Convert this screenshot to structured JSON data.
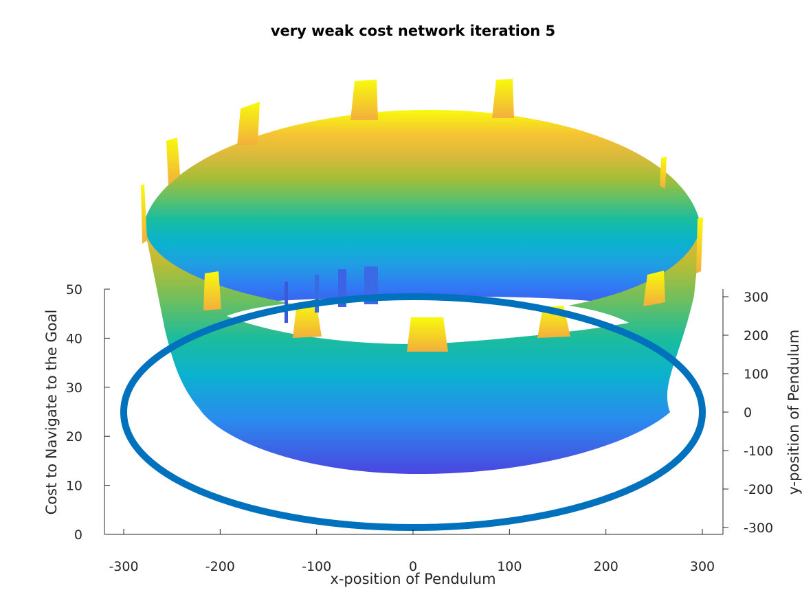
{
  "chart_data": {
    "type": "surface3d",
    "title": "very weak cost network iteration 5",
    "xlabel": "x-position of Pendulum",
    "ylabel": "y-position of Pendulum",
    "zlabel": "Cost to Navigate to the Goal",
    "xlim": [
      -320,
      320
    ],
    "ylim": [
      -320,
      320
    ],
    "zlim": [
      0,
      50
    ],
    "x_ticks": [
      "-300",
      "-200",
      "-100",
      "0",
      "100",
      "200",
      "300"
    ],
    "y_ticks": [
      "300",
      "200",
      "100",
      "0",
      "-100",
      "-200",
      "-300"
    ],
    "z_ticks": [
      "50",
      "40",
      "30",
      "20",
      "10",
      "0"
    ],
    "colormap": "parula",
    "colors": {
      "ring": "#0072BD",
      "axis": "#262626"
    },
    "ring": {
      "shape": "circle",
      "radius": 300,
      "z": 0
    },
    "surface": {
      "shape": "cylindrical band",
      "inner_radius": 260,
      "outer_radius": 290,
      "cost_range": [
        15,
        45
      ],
      "spikes_max_cost": 50
    }
  }
}
